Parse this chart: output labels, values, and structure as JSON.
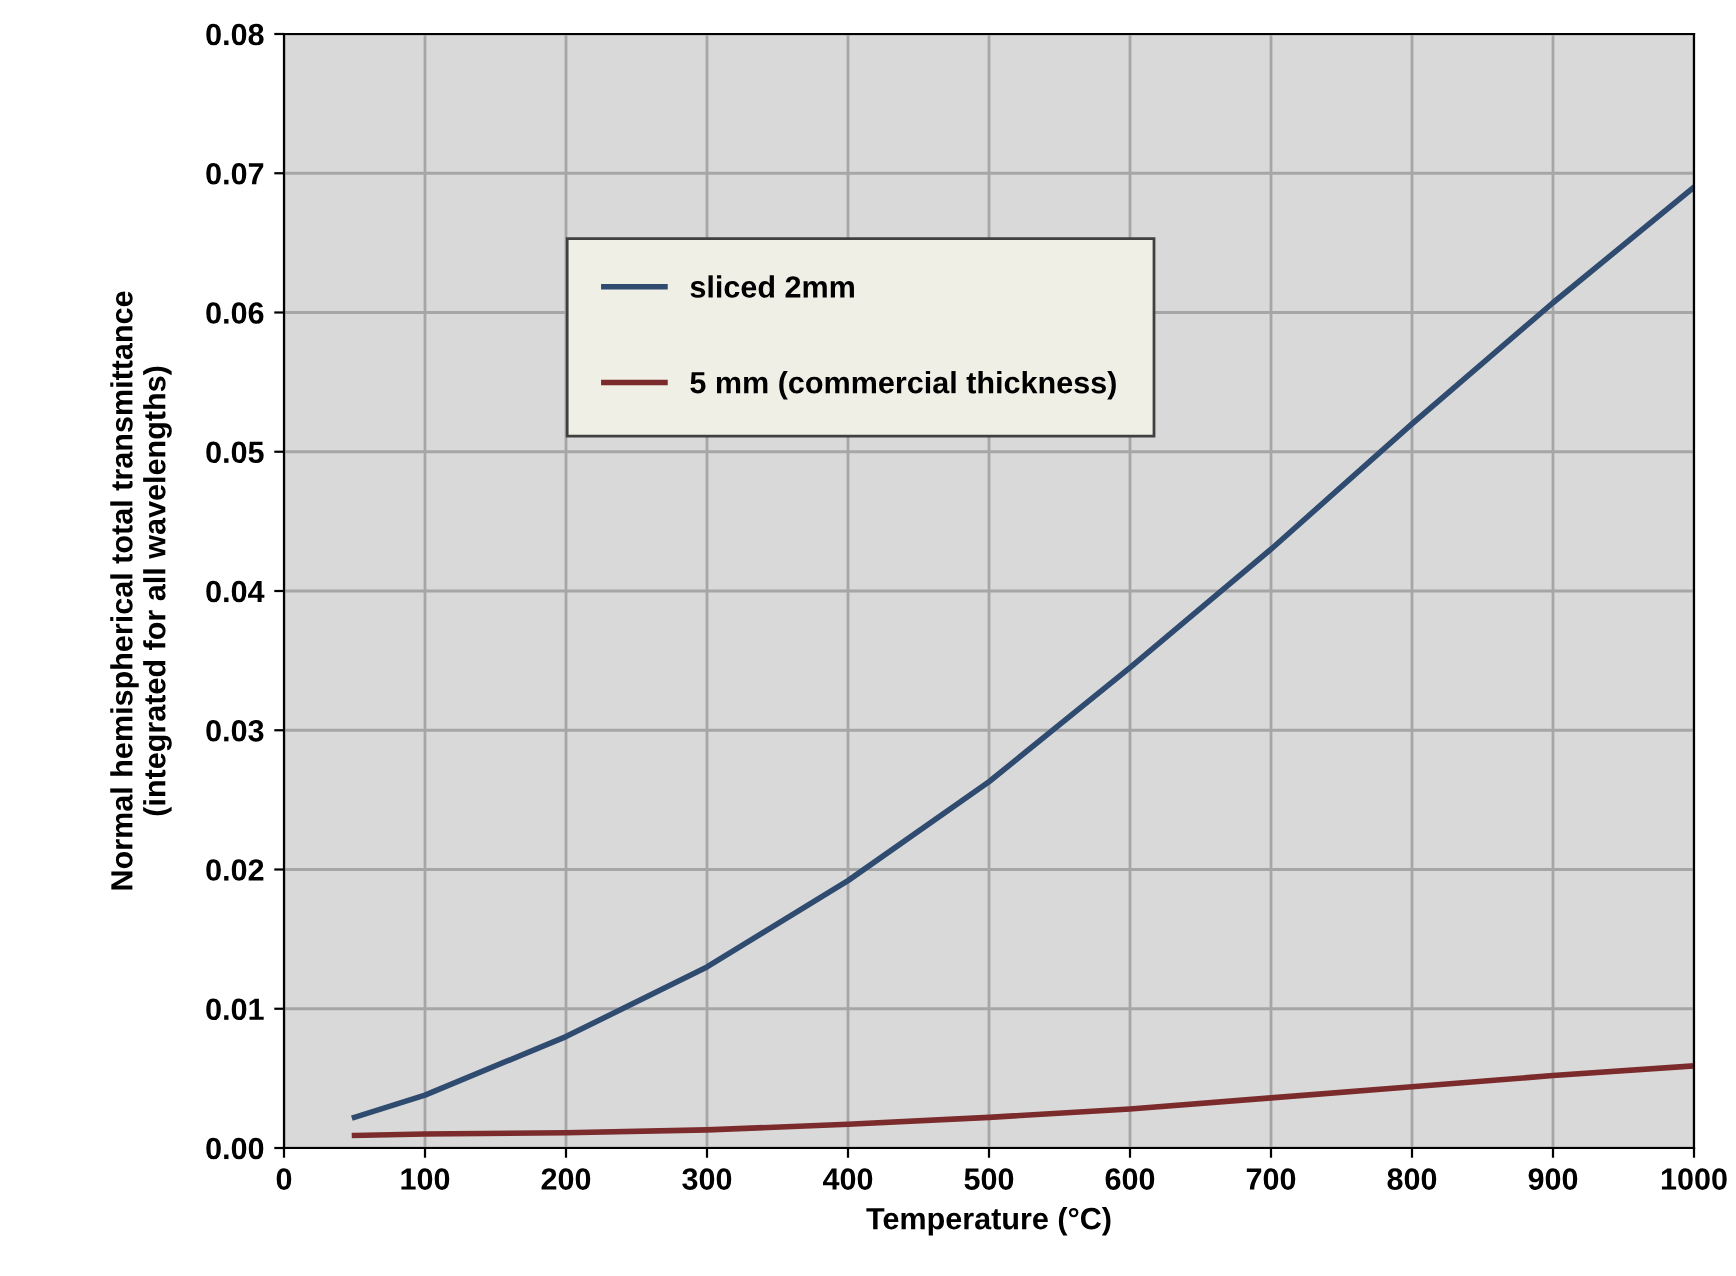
{
  "chart_data": {
    "type": "line",
    "xlabel": "Temperature (°C)",
    "ylabel": "Normal hemispherical total transmittance\n(integrated for all wavelengths)",
    "x": [
      50,
      100,
      200,
      300,
      400,
      500,
      600,
      700,
      800,
      900,
      1000
    ],
    "series": [
      {
        "name": "sliced 2mm",
        "color": "#2f4b70",
        "values": [
          0.0022,
          0.0038,
          0.008,
          0.013,
          0.0192,
          0.0263,
          0.0345,
          0.043,
          0.052,
          0.0607,
          0.069
        ]
      },
      {
        "name": "5 mm (commercial thickness)",
        "color": "#7b2b2b",
        "values": [
          0.0009,
          0.001,
          0.0011,
          0.0013,
          0.0017,
          0.0022,
          0.0028,
          0.0036,
          0.0044,
          0.0052,
          0.0059
        ]
      }
    ],
    "xlim": [
      0,
      1000
    ],
    "xticks": [
      0,
      100,
      200,
      300,
      400,
      500,
      600,
      700,
      800,
      900,
      1000
    ],
    "ylim": [
      0,
      0.08
    ],
    "yticks": [
      {
        "value": 0,
        "label": "0.00"
      },
      {
        "value": 0.01,
        "label": "0.01"
      },
      {
        "value": 0.02,
        "label": "0.02"
      },
      {
        "value": 0.03,
        "label": "0.03"
      },
      {
        "value": 0.04,
        "label": "0.04"
      },
      {
        "value": 0.05,
        "label": "0.05"
      },
      {
        "value": 0.06,
        "label": "0.06"
      },
      {
        "value": 0.07,
        "label": "0.07"
      },
      {
        "value": 0.08,
        "label": "0.08"
      }
    ],
    "grid": true,
    "legend": "top left",
    "marker": "none",
    "line_style": "solid"
  }
}
